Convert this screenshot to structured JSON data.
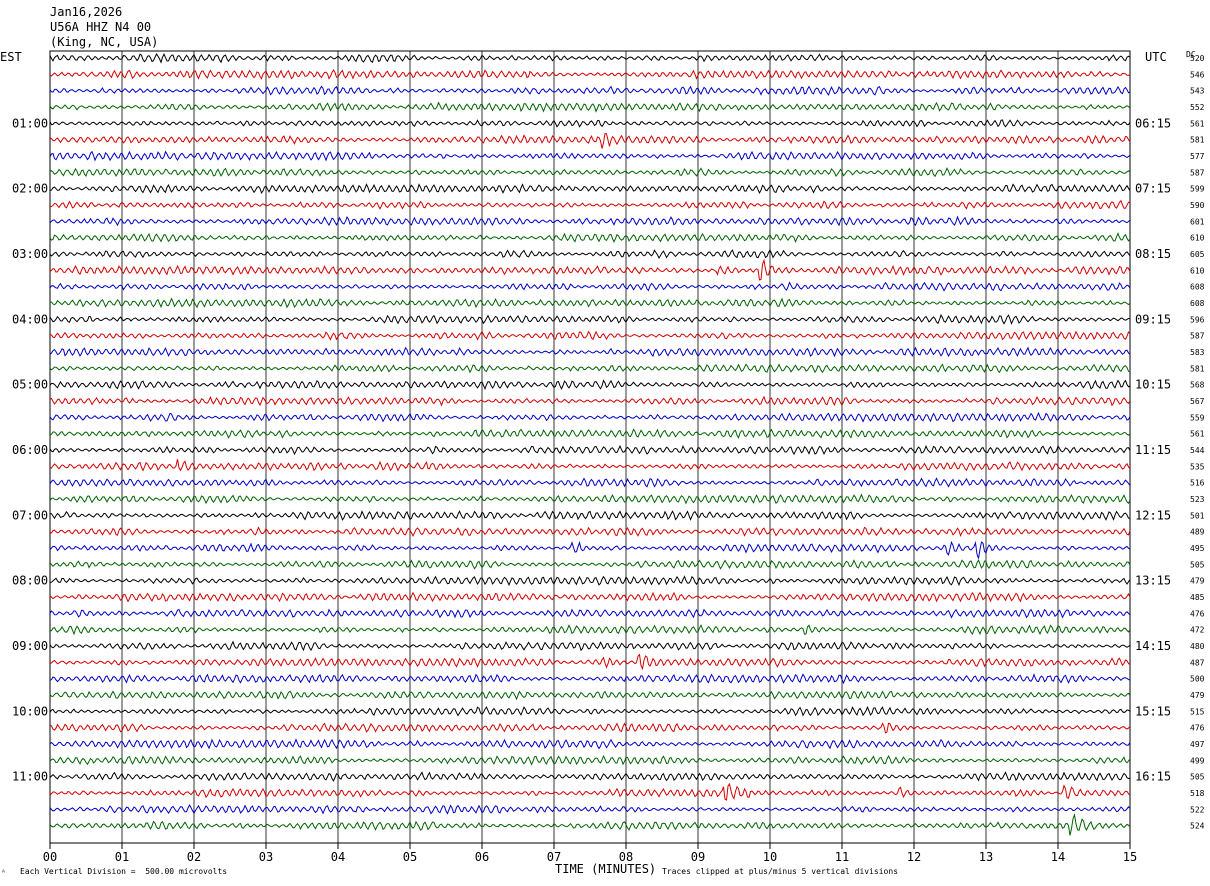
{
  "header": {
    "date": "Jan16,2026",
    "station": "U56A HHZ N4 00",
    "location": "(King, NC, USA)"
  },
  "left_label": "EST",
  "right_label": "UTC",
  "dc_label": "DC",
  "footer": {
    "scale_note": "Each Vertical Division =  500.00 microvolts",
    "xlabel": "TIME (MINUTES)",
    "clip_note": "Traces clipped at plus/minus 5 vertical divisions"
  },
  "chart_data": {
    "type": "line",
    "title": "U56A HHZ N4 00 (King, NC, USA)",
    "xlabel": "TIME (MINUTES)",
    "xlim": [
      0,
      15
    ],
    "x_tick_labels": [
      "00",
      "01",
      "02",
      "03",
      "04",
      "05",
      "06",
      "07",
      "08",
      "09",
      "10",
      "11",
      "12",
      "13",
      "14",
      "15"
    ],
    "grid": true,
    "row_colors": [
      "#000000",
      "#d40000",
      "#0000c8",
      "#006400"
    ],
    "est_hour_labels": [
      "01:00",
      "02:00",
      "03:00",
      "04:00",
      "05:00",
      "06:00",
      "07:00",
      "08:00",
      "09:00",
      "10:00",
      "11:00"
    ],
    "utc_hour_labels": [
      "06:15",
      "07:15",
      "08:15",
      "09:15",
      "10:15",
      "11:15",
      "12:15",
      "13:15",
      "14:15",
      "15:15",
      "16:15"
    ],
    "dc_offsets": [
      520,
      546,
      543,
      552,
      561,
      581,
      577,
      587,
      599,
      590,
      601,
      610,
      605,
      610,
      608,
      608,
      596,
      587,
      583,
      581,
      568,
      567,
      559,
      561,
      544,
      535,
      516,
      523,
      501,
      489,
      495,
      505,
      479,
      485,
      476,
      472,
      480,
      487,
      500,
      479,
      515,
      476,
      497,
      499,
      505,
      518,
      522,
      524
    ],
    "events": [
      {
        "row": 5,
        "minute": 7.7,
        "amplitude": 1.8
      },
      {
        "row": 13,
        "minute": 9.3,
        "amplitude": 1.5
      },
      {
        "row": 13,
        "minute": 9.9,
        "amplitude": 3.2
      },
      {
        "row": 25,
        "minute": 1.8,
        "amplitude": 1.6
      },
      {
        "row": 30,
        "minute": 7.3,
        "amplitude": 1.3
      },
      {
        "row": 30,
        "minute": 12.5,
        "amplitude": 1.5
      },
      {
        "row": 30,
        "minute": 12.9,
        "amplitude": 3.0
      },
      {
        "row": 35,
        "minute": 10.5,
        "amplitude": 1.6
      },
      {
        "row": 37,
        "minute": 7.7,
        "amplitude": 1.8
      },
      {
        "row": 37,
        "minute": 8.2,
        "amplitude": 3.0
      },
      {
        "row": 41,
        "minute": 11.6,
        "amplitude": 2.0
      },
      {
        "row": 45,
        "minute": 9.4,
        "amplitude": 3.2
      },
      {
        "row": 45,
        "minute": 11.8,
        "amplitude": 1.8
      },
      {
        "row": 45,
        "minute": 14.1,
        "amplitude": 2.6
      },
      {
        "row": 47,
        "minute": 14.2,
        "amplitude": 3.5
      }
    ]
  }
}
